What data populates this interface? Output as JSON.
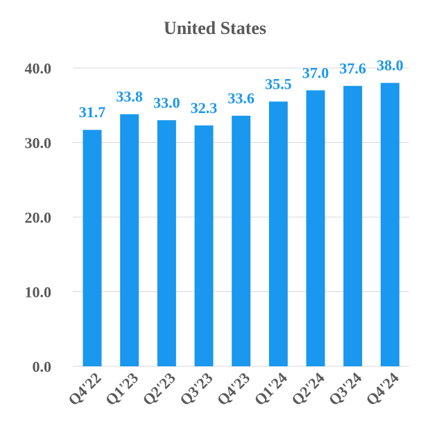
{
  "chart_data": {
    "type": "bar",
    "title": "United States",
    "categories": [
      "Q4'22",
      "Q1'23",
      "Q2'23",
      "Q3'23",
      "Q4'23",
      "Q1'24",
      "Q2'24",
      "Q3'24",
      "Q4'24"
    ],
    "values": [
      31.7,
      33.8,
      33.0,
      32.3,
      33.6,
      35.5,
      37.0,
      37.6,
      38.0
    ],
    "value_labels": [
      "31.7",
      "33.8",
      "33.0",
      "32.3",
      "33.6",
      "35.5",
      "37.0",
      "37.6",
      "38.0"
    ],
    "yticks": [
      "0.0",
      "10.0",
      "20.0",
      "30.0",
      "40.0"
    ],
    "ylim": [
      0,
      40
    ],
    "grid": true,
    "legend": "none",
    "bar_color": "#1a97ee",
    "label_color": "#1a97ee",
    "grid_color": "#d9d9d9",
    "text_color": "#595959"
  }
}
